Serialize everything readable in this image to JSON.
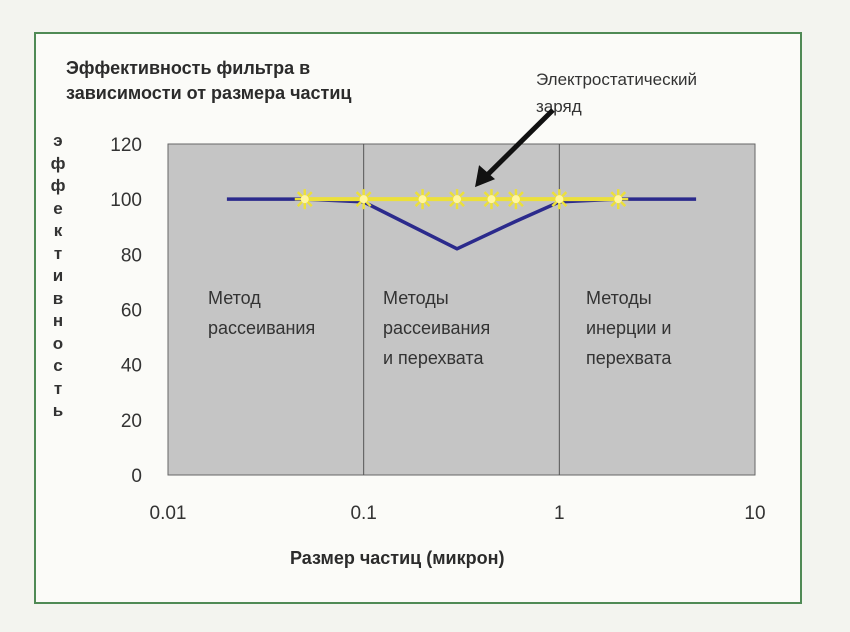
{
  "chart_data": {
    "type": "line",
    "title_lines": [
      "Эффективность фильтра в",
      "зависимости от размера частиц"
    ],
    "xlabel": "Размер частиц (микрон)",
    "ylabel": "эффективность",
    "x_scale": "log",
    "xlim": [
      0.01,
      10
    ],
    "ylim": [
      0,
      120
    ],
    "x_ticks": [
      "0.01",
      "0.1",
      "1",
      "10"
    ],
    "y_ticks": [
      "0",
      "20",
      "40",
      "60",
      "80",
      "100",
      "120"
    ],
    "grid": true,
    "annotation": {
      "lines": [
        "Электростатический",
        "заряд"
      ],
      "target_x": 0.3,
      "target_y": 100
    },
    "regions": [
      {
        "x_start": 0.01,
        "x_end": 0.1,
        "lines": [
          "Метод",
          "рассеивания"
        ]
      },
      {
        "x_start": 0.1,
        "x_end": 1,
        "lines": [
          "Методы",
          "рассеивания",
          "и перехвата"
        ]
      },
      {
        "x_start": 1,
        "x_end": 10,
        "lines": [
          "Методы",
          "инерции и",
          "перехвата"
        ]
      }
    ],
    "series": [
      {
        "color": "#2b2a8c",
        "x": [
          0.02,
          0.05,
          0.1,
          0.3,
          0.6,
          1,
          2,
          5
        ],
        "y": [
          100,
          100,
          99,
          82,
          92,
          99,
          100,
          100
        ]
      },
      {
        "color": "#ece03a",
        "marker": "star",
        "x": [
          0.05,
          0.1,
          0.2,
          0.3,
          0.45,
          0.6,
          1,
          2
        ],
        "y": [
          100,
          100,
          100,
          100,
          100,
          100,
          100,
          100
        ]
      }
    ]
  },
  "colors": {
    "plot_bg": "#c5c5c5",
    "frame": "#4f8a55"
  }
}
